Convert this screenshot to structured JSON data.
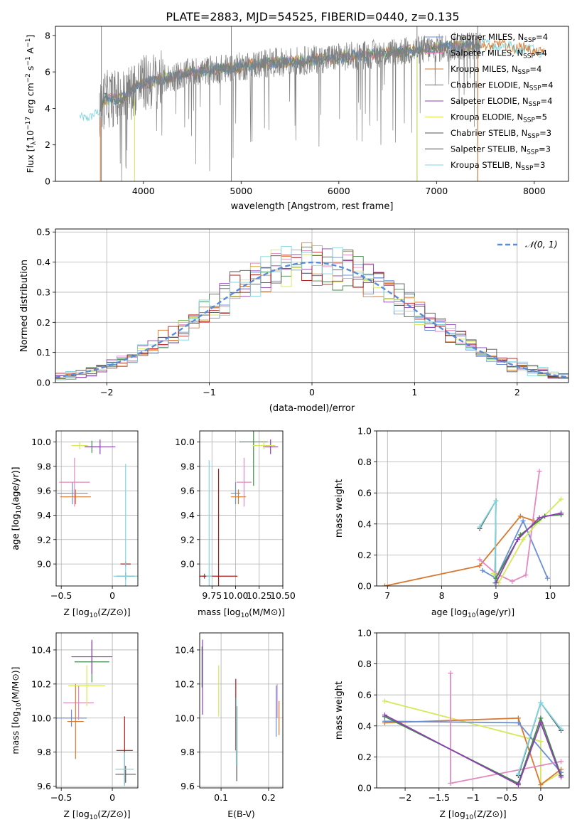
{
  "figure_title": "PLATE=2883, MJD=54525, FIBERID=0440, z=0.135",
  "colors": {
    "chabrier_miles": "#6a8fd8",
    "salpeter_miles": "#e28ac0",
    "kroupa_miles": "#d8792f",
    "chabrier_elodie": "#3f8a4a",
    "salpeter_elodie": "#8e3fb0",
    "kroupa_elodie": "#d6e85a",
    "chabrier_stelib": "#555555",
    "salpeter_stelib": "#b01818",
    "kroupa_stelib": "#7fd6e0",
    "data": "#808080",
    "normal_curve": "#5b8bd8",
    "grid": "#b0b0b0"
  },
  "chart_data": [
    {
      "type": "line",
      "id": "spectrum",
      "xlabel": "wavelength [Angstrom, rest frame]",
      "ylabel": "Flux [f_λ10^-17 erg cm^-2 s^-1 A^-1]",
      "xlim": [
        3100,
        8350
      ],
      "ylim": [
        0,
        8.5
      ],
      "xticks": [
        4000,
        5000,
        6000,
        7000,
        8000
      ],
      "yticks": [
        0,
        2,
        4,
        6,
        8
      ],
      "legend_position": "right",
      "legend": [
        {
          "label": "Chabrier MILES, N_SSP=4",
          "color": "#6a8fd8"
        },
        {
          "label": "Salpeter MILES, N_SSP=4",
          "color": "#e28ac0"
        },
        {
          "label": "Kroupa MILES, N_SSP=4",
          "color": "#d8792f"
        },
        {
          "label": "Chabrier ELODIE, N_SSP=4",
          "color": "#3f8a4a"
        },
        {
          "label": "Salpeter ELODIE, N_SSP=4",
          "color": "#8e3fb0"
        },
        {
          "label": "Kroupa ELODIE, N_SSP=5",
          "color": "#d6e85a"
        },
        {
          "label": "Chabrier STELIB, N_SSP=3",
          "color": "#555555"
        },
        {
          "label": "Salpeter STELIB, N_SSP=3",
          "color": "#b01818"
        },
        {
          "label": "Kroupa STELIB, N_SSP=3",
          "color": "#7fd6e0"
        }
      ],
      "model_continuum": {
        "x": [
          3350,
          3550,
          3600,
          3800,
          3950,
          4100,
          4300,
          4500,
          4700,
          5000,
          5300,
          5600,
          6000,
          6400,
          6800,
          7200,
          7600,
          8000,
          8100
        ],
        "y": [
          3.5,
          3.7,
          4.5,
          4.6,
          5.3,
          5.5,
          5.7,
          6.0,
          6.1,
          6.3,
          6.5,
          6.6,
          6.8,
          7.0,
          7.2,
          7.4,
          7.5,
          7.2,
          7.1
        ]
      },
      "data_range": [
        3550,
        7450
      ],
      "vertical_spikes": [
        3570,
        4900,
        6800,
        7420
      ]
    },
    {
      "type": "histogram",
      "id": "residuals",
      "xlabel": "(data-model)/error",
      "ylabel": "Normed distribution",
      "xlim": [
        -2.5,
        2.5
      ],
      "ylim": [
        0,
        0.51
      ],
      "xticks": [
        -2,
        -1,
        0,
        1,
        2
      ],
      "yticks": [
        0.0,
        0.1,
        0.2,
        0.3,
        0.4,
        0.5
      ],
      "bin_width": 0.1,
      "legend": [
        {
          "label": "N(0,1)",
          "style": "dashed",
          "color": "#5b8bd8"
        }
      ],
      "legend_position": "upper right"
    },
    {
      "type": "scatter",
      "id": "age_vs_Z",
      "xlabel": "Z [log10(Z/Z⊙)]",
      "ylabel": "age  [log10(age/yr)]",
      "xlim": [
        -0.55,
        0.25
      ],
      "ylim": [
        8.82,
        10.09
      ],
      "xticks": [
        -0.5,
        0.0
      ],
      "yticks": [
        9.0,
        9.2,
        9.4,
        9.6,
        9.8,
        10.0
      ],
      "points": [
        {
          "model": "chabrier_miles",
          "x": -0.39,
          "xerr": 0.15,
          "y": 9.58,
          "yerr": 0.09
        },
        {
          "model": "salpeter_miles",
          "x": -0.37,
          "xerr": 0.15,
          "y": 9.67,
          "yerr": 0.2
        },
        {
          "model": "kroupa_miles",
          "x": -0.36,
          "xerr": 0.15,
          "y": 9.55,
          "yerr": 0.06
        },
        {
          "model": "chabrier_elodie",
          "x": -0.2,
          "xerr": 0.07,
          "y": 9.96,
          "yerr": 0.05
        },
        {
          "model": "salpeter_elodie",
          "x": -0.12,
          "xerr": 0.15,
          "y": 9.96,
          "yerr": 0.06
        },
        {
          "model": "kroupa_elodie",
          "x": -0.32,
          "xerr": 0.08,
          "y": 9.97,
          "yerr": 0.03
        },
        {
          "model": "chabrier_stelib",
          "x": 0.13,
          "xerr": 0.09,
          "y": 8.9,
          "yerr": 0.03
        },
        {
          "model": "salpeter_stelib",
          "x": 0.13,
          "xerr": 0.05,
          "y": 9.0,
          "yerr": 0.02
        },
        {
          "model": "kroupa_stelib",
          "x": 0.13,
          "xerr": 0.12,
          "y": 8.9,
          "yerr": 0.92
        }
      ]
    },
    {
      "type": "scatter",
      "id": "age_vs_mass",
      "xlabel": "mass [log10(M/M⊙)]",
      "ylabel": "",
      "xlim": [
        9.62,
        10.5
      ],
      "ylim": [
        8.82,
        10.09
      ],
      "xticks": [
        9.75,
        10.0,
        10.25,
        10.5
      ],
      "xticklabels": [
        "9.75",
        "10.00",
        "10.25",
        "10.50"
      ],
      "yticks": [
        9.0,
        9.2,
        9.4,
        9.6,
        9.8,
        10.0
      ],
      "points": [
        {
          "model": "chabrier_miles",
          "x": 10.0,
          "xerr": 0.05,
          "y": 9.58,
          "yerr": 0.09
        },
        {
          "model": "salpeter_miles",
          "x": 10.09,
          "xerr": 0.08,
          "y": 9.67,
          "yerr": 0.2
        },
        {
          "model": "kroupa_miles",
          "x": 10.03,
          "xerr": 0.08,
          "y": 9.55,
          "yerr": 0.06
        },
        {
          "model": "chabrier_elodie",
          "x": 10.19,
          "xerr": 0.15,
          "y": 10.0,
          "yerr": 0.36
        },
        {
          "model": "salpeter_elodie",
          "x": 10.37,
          "xerr": 0.08,
          "y": 9.96,
          "yerr": 0.06
        },
        {
          "model": "kroupa_elodie",
          "x": 10.3,
          "xerr": 0.12,
          "y": 9.97,
          "yerr": 0.03
        },
        {
          "model": "chabrier_stelib",
          "x": 9.67,
          "xerr": 0.02,
          "y": 8.9,
          "yerr": 0.02
        },
        {
          "model": "salpeter_stelib",
          "x": 9.82,
          "xerr": 0.2,
          "y": 8.9,
          "yerr": 0.88
        },
        {
          "model": "kroupa_stelib",
          "x": 9.72,
          "xerr": 0.03,
          "y": 8.9,
          "yerr": 0.95
        }
      ]
    },
    {
      "type": "line",
      "id": "mass_weight_vs_age",
      "xlabel": "age  [log10(age/yr)]",
      "ylabel": "mass weight",
      "xlim": [
        6.8,
        10.35
      ],
      "ylim": [
        0,
        1.0
      ],
      "xticks": [
        7,
        8,
        9,
        10
      ],
      "yticks": [
        0.0,
        0.2,
        0.4,
        0.6,
        0.8,
        1.0
      ],
      "series": [
        {
          "model": "kroupa_miles",
          "x": [
            6.95,
            8.7,
            9.45,
            9.7
          ],
          "y": [
            0.0,
            0.13,
            0.45,
            0.42
          ]
        },
        {
          "model": "chabrier_miles",
          "x": [
            8.75,
            9.0,
            9.5,
            9.95
          ],
          "y": [
            0.1,
            0.05,
            0.42,
            0.05
          ]
        },
        {
          "model": "salpeter_miles",
          "x": [
            8.7,
            9.0,
            9.3,
            9.55,
            9.8
          ],
          "y": [
            0.17,
            0.08,
            0.03,
            0.07,
            0.74
          ]
        },
        {
          "model": "chabrier_stelib",
          "x": [
            8.7,
            9.0,
            8.98
          ],
          "y": [
            0.37,
            0.55,
            0.02
          ]
        },
        {
          "model": "kroupa_stelib",
          "x": [
            8.7,
            9.0,
            8.98
          ],
          "y": [
            0.38,
            0.55,
            0.02
          ]
        },
        {
          "model": "kroupa_elodie",
          "x": [
            8.95,
            9.05,
            9.5,
            9.8,
            10.2
          ],
          "y": [
            0.08,
            0.02,
            0.3,
            0.42,
            0.56
          ]
        },
        {
          "model": "chabrier_elodie",
          "x": [
            9.0,
            9.45,
            9.9,
            10.2
          ],
          "y": [
            0.05,
            0.33,
            0.45,
            0.46
          ]
        },
        {
          "model": "salpeter_elodie",
          "x": [
            9.0,
            9.4,
            9.8,
            10.2
          ],
          "y": [
            0.02,
            0.3,
            0.44,
            0.47
          ]
        }
      ]
    },
    {
      "type": "scatter",
      "id": "mass_vs_Z",
      "xlabel": "Z [log10(Z/Z⊙)]",
      "ylabel": "mass [log10(M/M⊙)]",
      "xlim": [
        -0.55,
        0.25
      ],
      "ylim": [
        9.59,
        10.5
      ],
      "xticks": [
        -0.5,
        0.0
      ],
      "yticks": [
        9.6,
        9.8,
        10.0,
        10.2,
        10.4
      ],
      "points": [
        {
          "model": "chabrier_miles",
          "x": -0.4,
          "xerr": 0.15,
          "y": 10.0,
          "yerr": 0.05
        },
        {
          "model": "salpeter_miles",
          "x": -0.33,
          "xerr": 0.15,
          "y": 10.09,
          "yerr": 0.1
        },
        {
          "model": "kroupa_miles",
          "x": -0.36,
          "xerr": 0.08,
          "y": 9.98,
          "yerr": 0.22
        },
        {
          "model": "chabrier_elodie",
          "x": -0.2,
          "xerr": 0.17,
          "y": 10.33,
          "yerr": 0.12
        },
        {
          "model": "salpeter_elodie",
          "x": -0.2,
          "xerr": 0.2,
          "y": 10.36,
          "yerr": 0.1
        },
        {
          "model": "kroupa_elodie",
          "x": -0.25,
          "xerr": 0.18,
          "y": 10.19,
          "yerr": 0.12
        },
        {
          "model": "chabrier_stelib",
          "x": 0.13,
          "xerr": 0.1,
          "y": 9.67,
          "yerr": 0.05
        },
        {
          "model": "salpeter_stelib",
          "x": 0.12,
          "xerr": 0.08,
          "y": 9.81,
          "yerr": 0.2
        },
        {
          "model": "kroupa_stelib",
          "x": 0.12,
          "xerr": 0.09,
          "y": 9.7,
          "yerr": 0.1
        }
      ]
    },
    {
      "type": "scatter",
      "id": "mass_vs_ebv",
      "xlabel": "E(B-V)",
      "ylabel": "",
      "xlim": [
        0.055,
        0.23
      ],
      "ylim": [
        9.59,
        10.5
      ],
      "xticks": [
        0.1,
        0.2
      ],
      "yticks": [
        9.6,
        9.8,
        10.0,
        10.2,
        10.4
      ],
      "points": [
        {
          "model": "chabrier_miles",
          "x": 0.216,
          "y": 10.04,
          "yerr": 0.15
        },
        {
          "model": "salpeter_miles",
          "x": 0.218,
          "y": 10.1,
          "yerr": 0.1
        },
        {
          "model": "kroupa_miles",
          "x": 0.222,
          "y": 10.0,
          "yerr": 0.1
        },
        {
          "model": "chabrier_elodie",
          "x": 0.06,
          "y": 10.3,
          "yerr": 0.12
        },
        {
          "model": "salpeter_elodie",
          "x": 0.061,
          "y": 10.24,
          "yerr": 0.22
        },
        {
          "model": "kroupa_elodie",
          "x": 0.095,
          "y": 10.16,
          "yerr": 0.15
        },
        {
          "model": "chabrier_stelib",
          "x": 0.133,
          "y": 9.85,
          "yerr": 0.22
        },
        {
          "model": "salpeter_stelib",
          "x": 0.131,
          "y": 10.02,
          "yerr": 0.21
        },
        {
          "model": "kroupa_stelib",
          "x": 0.132,
          "y": 9.92,
          "yerr": 0.2
        }
      ]
    },
    {
      "type": "line",
      "id": "mass_weight_vs_Z",
      "xlabel": "Z [log10(Z/Z⊙)]",
      "ylabel": "mass weight",
      "xlim": [
        -2.42,
        0.42
      ],
      "ylim": [
        0,
        1.0
      ],
      "xticks": [
        -2.0,
        -1.5,
        -1.0,
        -0.5,
        0.0
      ],
      "yticks": [
        0.0,
        0.2,
        0.4,
        0.6,
        0.8,
        1.0
      ],
      "series": [
        {
          "model": "kroupa_elodie",
          "x": [
            -2.3,
            0.0,
            -0.0,
            0.3
          ],
          "y": [
            0.56,
            0.3,
            0.02,
            0.1
          ]
        },
        {
          "model": "kroupa_miles",
          "x": [
            -2.3,
            -0.33,
            0.0,
            0.3
          ],
          "y": [
            0.42,
            0.45,
            0.02,
            0.12
          ]
        },
        {
          "model": "chabrier_miles",
          "x": [
            -2.3,
            -0.33,
            0.3
          ],
          "y": [
            0.43,
            0.42,
            0.1
          ]
        },
        {
          "model": "salpeter_miles",
          "x": [
            -1.33,
            -1.33,
            0.3
          ],
          "y": [
            0.74,
            0.03,
            0.17
          ]
        },
        {
          "model": "chabrier_elodie",
          "x": [
            -2.3,
            -0.33,
            0.0,
            0.3
          ],
          "y": [
            0.46,
            0.03,
            0.45,
            0.08
          ]
        },
        {
          "model": "salpeter_elodie",
          "x": [
            -2.3,
            -0.33,
            0.0,
            0.3
          ],
          "y": [
            0.47,
            0.02,
            0.42,
            0.07
          ]
        },
        {
          "model": "chabrier_stelib",
          "x": [
            -0.33,
            0.0,
            0.3
          ],
          "y": [
            0.08,
            0.55,
            0.37
          ]
        },
        {
          "model": "kroupa_stelib",
          "x": [
            -0.33,
            0.0,
            0.3
          ],
          "y": [
            0.09,
            0.55,
            0.38
          ]
        }
      ]
    }
  ]
}
